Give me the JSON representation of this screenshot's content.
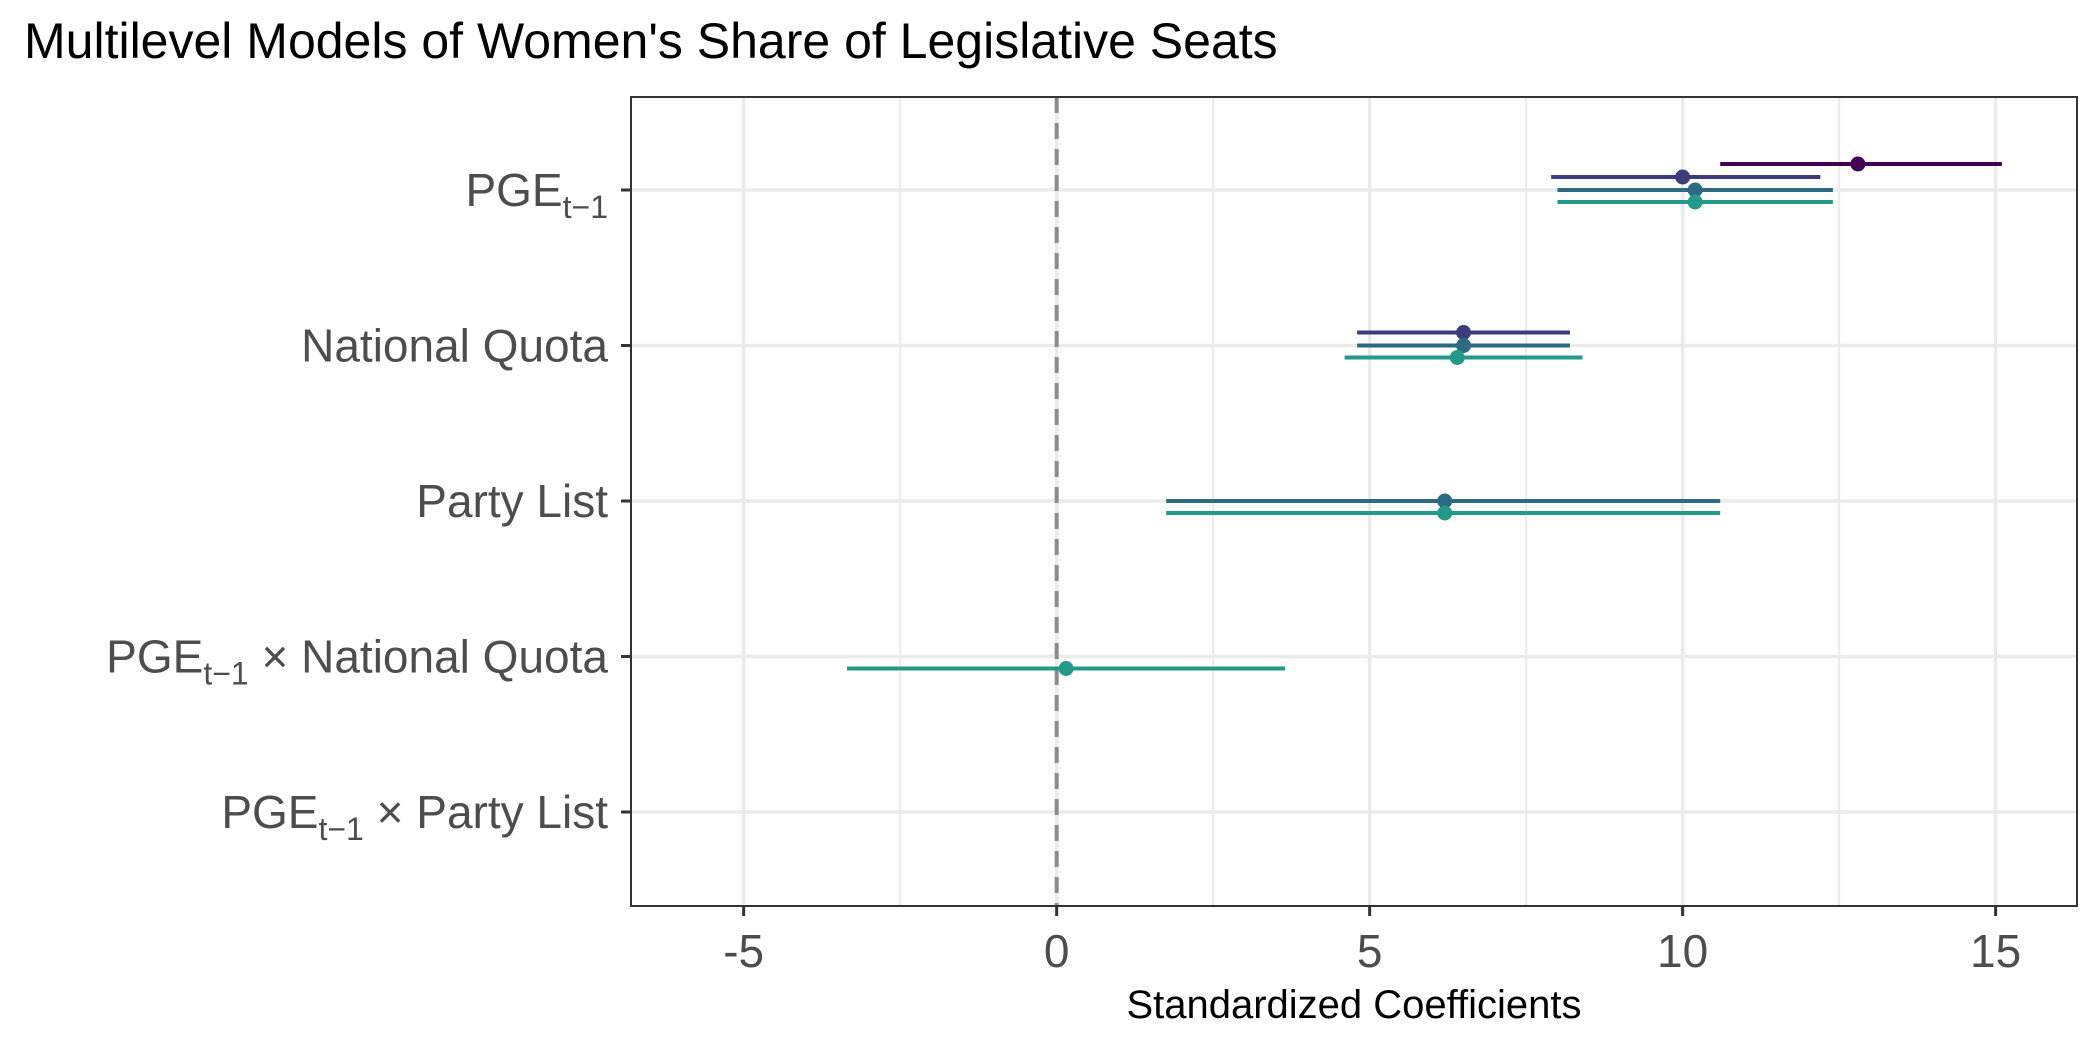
{
  "chart_data": {
    "type": "dot-whisker",
    "title": "Multilevel Models of Women's Share of Legislative Seats",
    "xlabel": "Standardized Coefficients",
    "ylabel": "",
    "xlim": [
      -6.8,
      16.3
    ],
    "xticks": [
      -5,
      0,
      5,
      10,
      15
    ],
    "xtick_labels": [
      "-5",
      "0",
      "5",
      "10",
      "15"
    ],
    "reference_line": 0,
    "grid": true,
    "legend": "none",
    "terms": [
      {
        "base": "PGE",
        "sub": "t−1",
        "rest": ""
      },
      {
        "base": "National Quota",
        "sub": "",
        "rest": ""
      },
      {
        "base": "Party List",
        "sub": "",
        "rest": ""
      },
      {
        "base": "PGE",
        "sub": "t−1",
        "rest": " × National Quota"
      },
      {
        "base": "PGE",
        "sub": "t−1",
        "rest": " × Party List"
      }
    ],
    "series_colors": [
      "#440154",
      "#3b3b7e",
      "#2b6a80",
      "#23998a"
    ],
    "series": [
      {
        "estimates": [
          12.8,
          null,
          null,
          null,
          null
        ],
        "low": [
          10.6,
          null,
          null,
          null,
          null
        ],
        "high": [
          15.1,
          null,
          null,
          null,
          null
        ]
      },
      {
        "estimates": [
          10.0,
          6.5,
          null,
          null,
          null
        ],
        "low": [
          7.9,
          4.8,
          null,
          null,
          null
        ],
        "high": [
          12.2,
          8.2,
          null,
          null,
          null
        ]
      },
      {
        "estimates": [
          10.2,
          6.5,
          6.2,
          null,
          null
        ],
        "low": [
          8.0,
          4.8,
          1.75,
          null,
          null
        ],
        "high": [
          12.4,
          8.2,
          10.6,
          null,
          null
        ]
      },
      {
        "estimates": [
          10.2,
          6.4,
          6.2,
          0.15,
          null
        ],
        "low": [
          8.0,
          4.6,
          1.75,
          -3.35,
          null
        ],
        "high": [
          12.4,
          8.4,
          10.6,
          3.65,
          null
        ]
      }
    ]
  }
}
